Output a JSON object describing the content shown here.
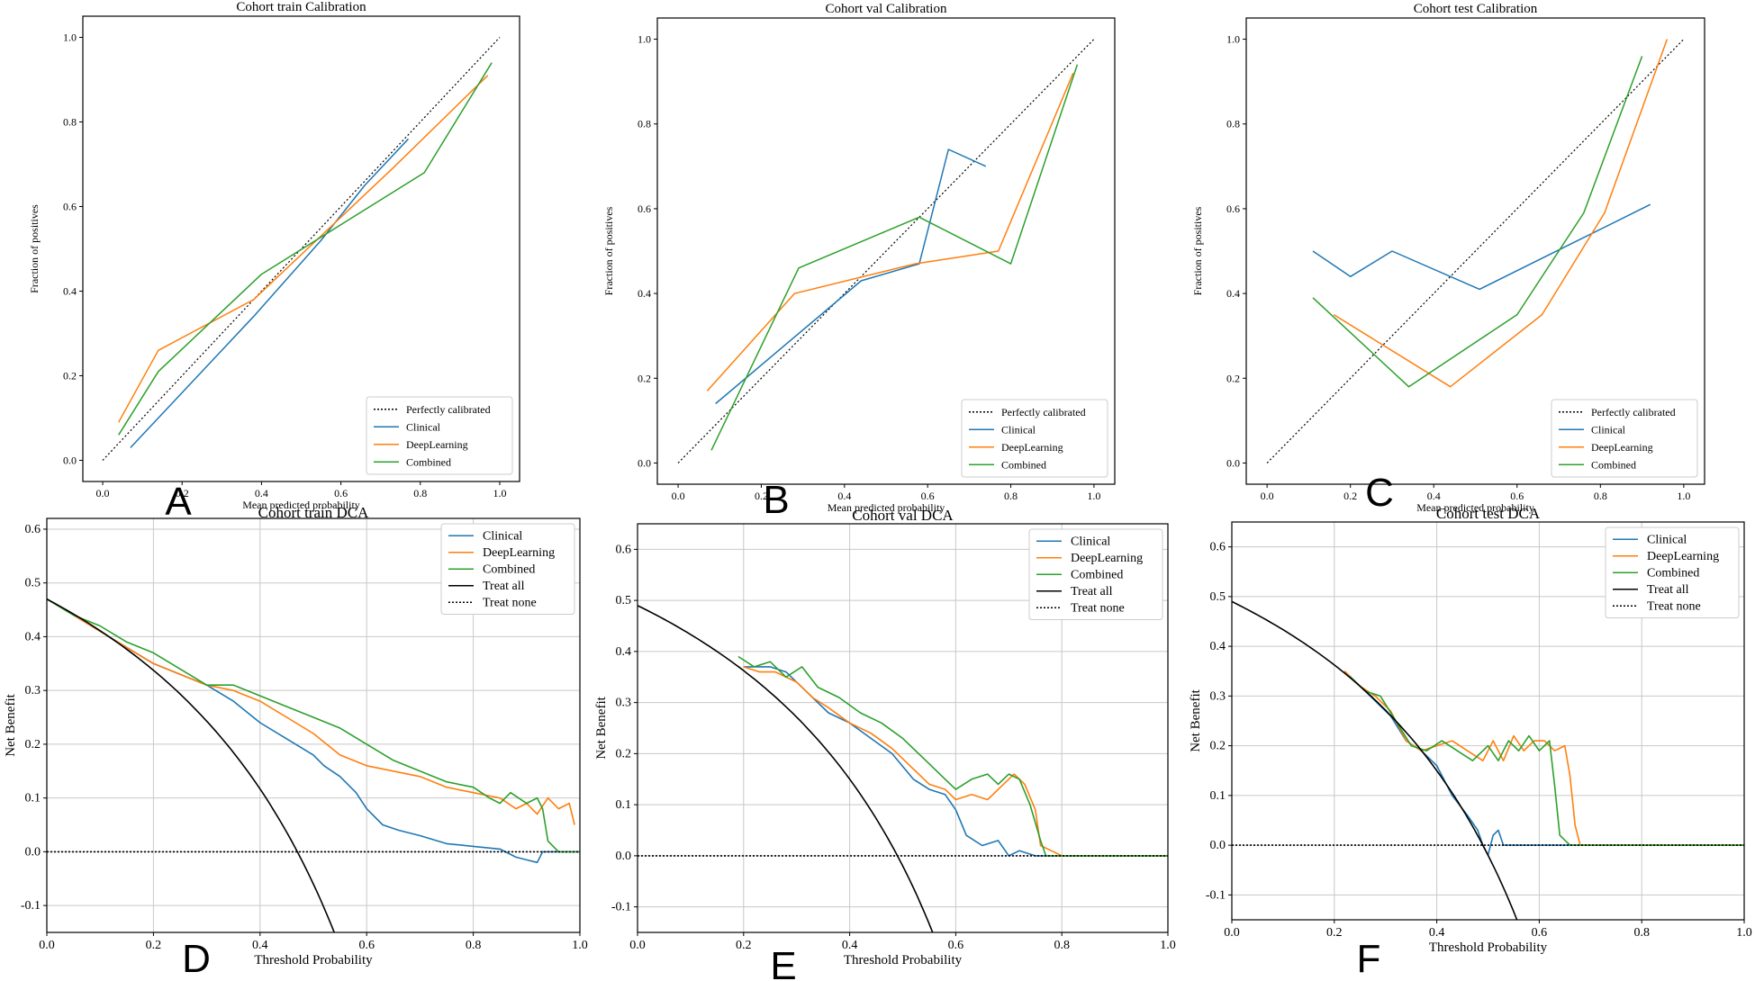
{
  "colors": {
    "clinical": "#1f77b4",
    "deeplearning": "#ff7f0e",
    "combined": "#2ca02c",
    "treat_all": "#000000",
    "treat_none": "#000000",
    "reference": "#000000"
  },
  "chart_data": [
    {
      "type": "line",
      "panel": "A",
      "title": "Cohort train Calibration",
      "xlabel": "Mean predicted probability",
      "ylabel": "Fraction of positives",
      "xlim": [
        -0.05,
        1.05
      ],
      "ylim": [
        -0.05,
        1.05
      ],
      "xticks": [
        "0.0",
        "0.2",
        "0.4",
        "0.6",
        "0.8",
        "1.0"
      ],
      "yticks": [
        "0.0",
        "0.2",
        "0.4",
        "0.6",
        "0.8",
        "1.0"
      ],
      "grid": false,
      "legend_position": "bottom-right",
      "reference": {
        "name": "Perfectly calibrated",
        "x": [
          0,
          1
        ],
        "y": [
          0,
          1
        ]
      },
      "series": [
        {
          "name": "Clinical",
          "color": "#1f77b4",
          "x": [
            0.07,
            0.38,
            0.55,
            0.66,
            0.77
          ],
          "y": [
            0.03,
            0.34,
            0.52,
            0.65,
            0.76
          ]
        },
        {
          "name": "DeepLearning",
          "color": "#ff7f0e",
          "x": [
            0.04,
            0.14,
            0.38,
            0.73,
            0.97
          ],
          "y": [
            0.09,
            0.26,
            0.38,
            0.69,
            0.91
          ]
        },
        {
          "name": "Combined",
          "color": "#2ca02c",
          "x": [
            0.04,
            0.14,
            0.4,
            0.81,
            0.98
          ],
          "y": [
            0.06,
            0.21,
            0.44,
            0.68,
            0.94
          ]
        }
      ]
    },
    {
      "type": "line",
      "panel": "B",
      "title": "Cohort val Calibration",
      "xlabel": "Mean predicted probability",
      "ylabel": "Fraction of positives",
      "xlim": [
        -0.05,
        1.05
      ],
      "ylim": [
        -0.05,
        1.05
      ],
      "xticks": [
        "0.0",
        "0.2",
        "0.4",
        "0.6",
        "0.8",
        "1.0"
      ],
      "yticks": [
        "0.0",
        "0.2",
        "0.4",
        "0.6",
        "0.8",
        "1.0"
      ],
      "grid": false,
      "legend_position": "bottom-right",
      "reference": {
        "name": "Perfectly calibrated",
        "x": [
          0,
          1
        ],
        "y": [
          0,
          1
        ]
      },
      "series": [
        {
          "name": "Clinical",
          "color": "#1f77b4",
          "x": [
            0.09,
            0.44,
            0.58,
            0.65,
            0.74
          ],
          "y": [
            0.14,
            0.43,
            0.47,
            0.74,
            0.7
          ]
        },
        {
          "name": "DeepLearning",
          "color": "#ff7f0e",
          "x": [
            0.07,
            0.28,
            0.57,
            0.77,
            0.95
          ],
          "y": [
            0.17,
            0.4,
            0.47,
            0.5,
            0.92
          ]
        },
        {
          "name": "Combined",
          "color": "#2ca02c",
          "x": [
            0.08,
            0.29,
            0.58,
            0.8,
            0.96
          ],
          "y": [
            0.03,
            0.46,
            0.58,
            0.47,
            0.94
          ]
        }
      ]
    },
    {
      "type": "line",
      "panel": "C",
      "title": "Cohort test Calibration",
      "xlabel": "Mean predicted probability",
      "ylabel": "Fraction of positives",
      "xlim": [
        -0.05,
        1.05
      ],
      "ylim": [
        -0.05,
        1.05
      ],
      "xticks": [
        "0.0",
        "0.2",
        "0.4",
        "0.6",
        "0.8",
        "1.0"
      ],
      "yticks": [
        "0.0",
        "0.2",
        "0.4",
        "0.6",
        "0.8",
        "1.0"
      ],
      "grid": false,
      "legend_position": "bottom-right",
      "reference": {
        "name": "Perfectly calibrated",
        "x": [
          0,
          1
        ],
        "y": [
          0,
          1
        ]
      },
      "series": [
        {
          "name": "Clinical",
          "color": "#1f77b4",
          "x": [
            0.11,
            0.2,
            0.3,
            0.51,
            0.92
          ],
          "y": [
            0.5,
            0.44,
            0.5,
            0.41,
            0.61
          ]
        },
        {
          "name": "DeepLearning",
          "color": "#ff7f0e",
          "x": [
            0.16,
            0.44,
            0.66,
            0.81,
            0.96
          ],
          "y": [
            0.35,
            0.18,
            0.35,
            0.59,
            1.0
          ]
        },
        {
          "name": "Combined",
          "color": "#2ca02c",
          "x": [
            0.11,
            0.34,
            0.6,
            0.76,
            0.9
          ],
          "y": [
            0.39,
            0.18,
            0.35,
            0.59,
            0.96
          ]
        }
      ]
    },
    {
      "type": "line",
      "panel": "D",
      "title": "Cohort train DCA",
      "xlabel": "Threshold Probability",
      "ylabel": "Net Benefit",
      "xlim": [
        0,
        1
      ],
      "ylim": [
        -0.15,
        0.62
      ],
      "xticks": [
        "0.0",
        "0.2",
        "0.4",
        "0.6",
        "0.8",
        "1.0"
      ],
      "yticks": [
        "-0.1",
        "0.0",
        "0.1",
        "0.2",
        "0.3",
        "0.4",
        "0.5",
        "0.6"
      ],
      "grid": true,
      "legend_position": "top-right",
      "series": [
        {
          "name": "Clinical",
          "color": "#1f77b4",
          "style": "solid",
          "x": [
            0.0,
            0.05,
            0.1,
            0.15,
            0.2,
            0.25,
            0.3,
            0.35,
            0.4,
            0.45,
            0.5,
            0.52,
            0.55,
            0.58,
            0.6,
            0.63,
            0.66,
            0.7,
            0.75,
            0.8,
            0.85,
            0.88,
            0.9,
            0.92,
            0.93,
            0.95,
            1.0
          ],
          "y": [
            0.47,
            0.44,
            0.41,
            0.38,
            0.35,
            0.33,
            0.31,
            0.28,
            0.24,
            0.21,
            0.18,
            0.16,
            0.14,
            0.11,
            0.08,
            0.05,
            0.04,
            0.03,
            0.015,
            0.01,
            0.005,
            -0.01,
            -0.015,
            -0.02,
            0.0,
            0.0,
            0.0
          ]
        },
        {
          "name": "DeepLearning",
          "color": "#ff7f0e",
          "style": "solid",
          "x": [
            0.0,
            0.05,
            0.1,
            0.15,
            0.2,
            0.25,
            0.3,
            0.35,
            0.4,
            0.45,
            0.5,
            0.55,
            0.6,
            0.65,
            0.7,
            0.75,
            0.8,
            0.85,
            0.88,
            0.9,
            0.92,
            0.94,
            0.96,
            0.98,
            0.99
          ],
          "y": [
            0.47,
            0.44,
            0.41,
            0.38,
            0.35,
            0.33,
            0.31,
            0.3,
            0.28,
            0.25,
            0.22,
            0.18,
            0.16,
            0.15,
            0.14,
            0.12,
            0.11,
            0.1,
            0.08,
            0.09,
            0.07,
            0.1,
            0.08,
            0.09,
            0.05
          ]
        },
        {
          "name": "Combined",
          "color": "#2ca02c",
          "style": "solid",
          "x": [
            0.0,
            0.05,
            0.1,
            0.15,
            0.2,
            0.25,
            0.3,
            0.35,
            0.4,
            0.45,
            0.5,
            0.55,
            0.6,
            0.65,
            0.7,
            0.75,
            0.8,
            0.83,
            0.85,
            0.87,
            0.9,
            0.92,
            0.93,
            0.94,
            0.96,
            1.0
          ],
          "y": [
            0.47,
            0.44,
            0.42,
            0.39,
            0.37,
            0.34,
            0.31,
            0.31,
            0.29,
            0.27,
            0.25,
            0.23,
            0.2,
            0.17,
            0.15,
            0.13,
            0.12,
            0.1,
            0.09,
            0.11,
            0.09,
            0.1,
            0.08,
            0.02,
            0.0,
            0.0
          ]
        },
        {
          "name": "Treat all",
          "color": "#000000",
          "style": "solid",
          "prevalence": 0.47,
          "x": [
            0.0,
            0.54
          ]
        },
        {
          "name": "Treat none",
          "color": "#000000",
          "style": "dotted",
          "x": [
            0,
            1
          ],
          "y": [
            0,
            0
          ]
        }
      ]
    },
    {
      "type": "line",
      "panel": "E",
      "title": "Cohort val DCA",
      "xlabel": "Threshold Probability",
      "ylabel": "Net Benefit",
      "xlim": [
        0,
        1
      ],
      "ylim": [
        -0.15,
        0.65
      ],
      "xticks": [
        "0.0",
        "0.2",
        "0.4",
        "0.6",
        "0.8",
        "1.0"
      ],
      "yticks": [
        "-0.1",
        "0.0",
        "0.1",
        "0.2",
        "0.3",
        "0.4",
        "0.5",
        "0.6"
      ],
      "grid": true,
      "legend_position": "top-right",
      "series": [
        {
          "name": "Clinical",
          "color": "#1f77b4",
          "style": "solid",
          "x": [
            0.2,
            0.23,
            0.25,
            0.28,
            0.3,
            0.33,
            0.36,
            0.4,
            0.44,
            0.48,
            0.52,
            0.55,
            0.58,
            0.6,
            0.62,
            0.65,
            0.68,
            0.7,
            0.72,
            0.75,
            0.77,
            0.8,
            1.0
          ],
          "y": [
            0.37,
            0.37,
            0.37,
            0.36,
            0.34,
            0.31,
            0.28,
            0.26,
            0.23,
            0.2,
            0.15,
            0.13,
            0.12,
            0.09,
            0.04,
            0.02,
            0.03,
            0.0,
            0.01,
            0.0,
            0.0,
            0.0,
            0.0
          ]
        },
        {
          "name": "DeepLearning",
          "color": "#ff7f0e",
          "style": "solid",
          "x": [
            0.2,
            0.23,
            0.26,
            0.3,
            0.33,
            0.36,
            0.4,
            0.44,
            0.48,
            0.52,
            0.55,
            0.58,
            0.6,
            0.63,
            0.66,
            0.69,
            0.71,
            0.73,
            0.75,
            0.76,
            0.78,
            0.8,
            1.0
          ],
          "y": [
            0.37,
            0.36,
            0.36,
            0.34,
            0.31,
            0.29,
            0.26,
            0.24,
            0.21,
            0.17,
            0.14,
            0.13,
            0.11,
            0.12,
            0.11,
            0.14,
            0.16,
            0.14,
            0.09,
            0.02,
            0.01,
            0.0,
            0.0
          ]
        },
        {
          "name": "Combined",
          "color": "#2ca02c",
          "style": "solid",
          "x": [
            0.19,
            0.22,
            0.25,
            0.28,
            0.31,
            0.34,
            0.38,
            0.42,
            0.46,
            0.5,
            0.54,
            0.58,
            0.6,
            0.63,
            0.66,
            0.68,
            0.7,
            0.72,
            0.74,
            0.76,
            0.77,
            0.8,
            1.0
          ],
          "y": [
            0.39,
            0.37,
            0.38,
            0.35,
            0.37,
            0.33,
            0.31,
            0.28,
            0.26,
            0.23,
            0.19,
            0.15,
            0.13,
            0.15,
            0.16,
            0.14,
            0.16,
            0.15,
            0.1,
            0.03,
            0.0,
            0.0,
            0.0
          ]
        },
        {
          "name": "Treat all",
          "color": "#000000",
          "style": "solid",
          "prevalence": 0.49,
          "x": [
            0.0,
            0.57
          ]
        },
        {
          "name": "Treat none",
          "color": "#000000",
          "style": "dotted",
          "x": [
            0,
            1
          ],
          "y": [
            0,
            0
          ]
        }
      ]
    },
    {
      "type": "line",
      "panel": "F",
      "title": "Cohort test DCA",
      "xlabel": "Threshold Probability",
      "ylabel": "Net Benefit",
      "xlim": [
        0,
        1
      ],
      "ylim": [
        -0.15,
        0.65
      ],
      "xticks": [
        "0.0",
        "0.2",
        "0.4",
        "0.6",
        "0.8",
        "1.0"
      ],
      "yticks": [
        "-0.1",
        "0.0",
        "0.1",
        "0.2",
        "0.3",
        "0.4",
        "0.5",
        "0.6"
      ],
      "grid": true,
      "legend_position": "top-right",
      "series": [
        {
          "name": "Clinical",
          "color": "#1f77b4",
          "style": "solid",
          "x": [
            0.22,
            0.25,
            0.28,
            0.31,
            0.34,
            0.37,
            0.4,
            0.43,
            0.46,
            0.48,
            0.49,
            0.5,
            0.51,
            0.52,
            0.53,
            0.55,
            1.0
          ],
          "y": [
            0.35,
            0.32,
            0.29,
            0.26,
            0.21,
            0.19,
            0.16,
            0.1,
            0.06,
            0.03,
            0.0,
            -0.02,
            0.02,
            0.03,
            0.0,
            0.0,
            0.0
          ]
        },
        {
          "name": "DeepLearning",
          "color": "#ff7f0e",
          "style": "solid",
          "x": [
            0.22,
            0.25,
            0.28,
            0.31,
            0.34,
            0.37,
            0.4,
            0.43,
            0.46,
            0.49,
            0.51,
            0.53,
            0.55,
            0.57,
            0.59,
            0.61,
            0.63,
            0.65,
            0.66,
            0.67,
            0.68,
            0.7,
            1.0
          ],
          "y": [
            0.35,
            0.32,
            0.3,
            0.27,
            0.21,
            0.19,
            0.2,
            0.21,
            0.19,
            0.17,
            0.21,
            0.17,
            0.22,
            0.19,
            0.21,
            0.21,
            0.19,
            0.2,
            0.14,
            0.04,
            0.0,
            0.0,
            0.0
          ]
        },
        {
          "name": "Combined",
          "color": "#2ca02c",
          "style": "solid",
          "x": [
            0.23,
            0.26,
            0.29,
            0.32,
            0.35,
            0.38,
            0.41,
            0.44,
            0.47,
            0.5,
            0.52,
            0.54,
            0.56,
            0.58,
            0.6,
            0.62,
            0.63,
            0.64,
            0.66,
            1.0
          ],
          "y": [
            0.34,
            0.31,
            0.3,
            0.25,
            0.2,
            0.19,
            0.21,
            0.19,
            0.17,
            0.2,
            0.17,
            0.21,
            0.19,
            0.22,
            0.19,
            0.21,
            0.12,
            0.02,
            0.0,
            0.0
          ]
        },
        {
          "name": "Treat all",
          "color": "#000000",
          "style": "solid",
          "prevalence": 0.49,
          "x": [
            0.0,
            0.57
          ]
        },
        {
          "name": "Treat none",
          "color": "#000000",
          "style": "dotted",
          "x": [
            0,
            1
          ],
          "y": [
            0,
            0
          ]
        }
      ]
    }
  ]
}
